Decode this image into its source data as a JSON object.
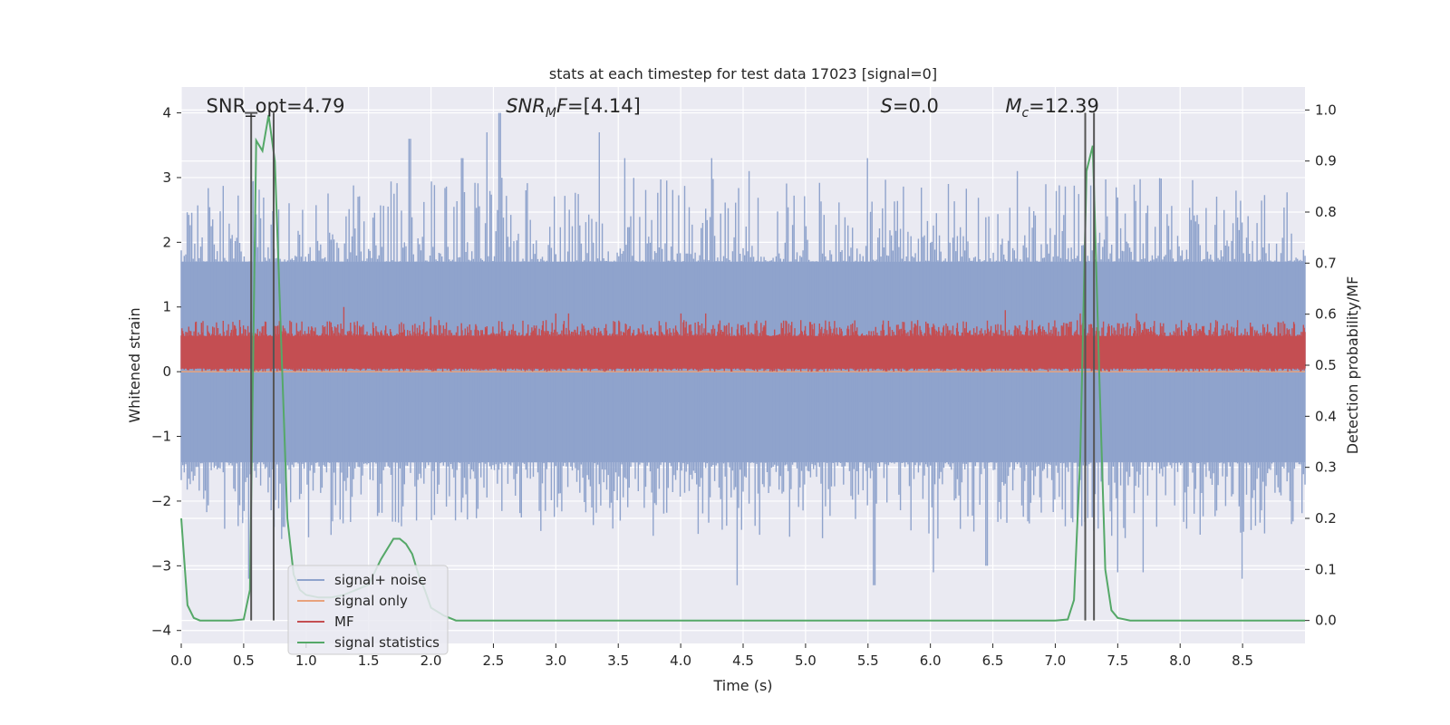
{
  "chart_data": {
    "type": "line",
    "title": "stats at each timestep for test data 17023 [signal=0]",
    "xlabel": "Time (s)",
    "ylabel": "Whitened strain",
    "ylabel_right": "Detection probability/MF",
    "xlim": [
      0.0,
      9.0
    ],
    "ylim": [
      -4.2,
      4.4
    ],
    "ylim_right": [
      -0.045,
      1.045
    ],
    "x_ticks": [
      0.0,
      0.5,
      1.0,
      1.5,
      2.0,
      2.5,
      3.0,
      3.5,
      4.0,
      4.5,
      5.0,
      5.5,
      6.0,
      6.5,
      7.0,
      7.5,
      8.0,
      8.5
    ],
    "x_tick_labels": [
      "0.0",
      "0.5",
      "1.0",
      "1.5",
      "2.0",
      "2.5",
      "3.0",
      "3.5",
      "4.0",
      "4.5",
      "5.0",
      "5.5",
      "6.0",
      "6.5",
      "7.0",
      "7.5",
      "8.0",
      "8.5"
    ],
    "y_ticks": [
      -4,
      -3,
      -2,
      -1,
      0,
      1,
      2,
      3,
      4
    ],
    "y_tick_labels": [
      "−4",
      "−3",
      "−2",
      "−1",
      "0",
      "1",
      "2",
      "3",
      "4"
    ],
    "y_ticks_right": [
      0.0,
      0.1,
      0.2,
      0.3,
      0.4,
      0.5,
      0.6,
      0.7,
      0.8,
      0.9,
      1.0
    ],
    "y_tick_labels_right": [
      "0.0",
      "0.1",
      "0.2",
      "0.3",
      "0.4",
      "0.5",
      "0.6",
      "0.7",
      "0.8",
      "0.9",
      "1.0"
    ],
    "grid": true,
    "annotations": [
      {
        "id": "snr-opt",
        "text": "SNR_opt=4.79",
        "x": 0.2
      },
      {
        "id": "snr-mf",
        "text": "SNR",
        "sub": "M",
        "tail": "F=[4.14]",
        "italic": true,
        "x": 2.6
      },
      {
        "id": "s-value",
        "text": "S",
        "tail": "=0.0",
        "italic": true,
        "x": 5.6
      },
      {
        "id": "mc-value",
        "text": "M",
        "sub": "c",
        "tail": "=12.39",
        "italic": true,
        "x": 6.6
      }
    ],
    "vertical_lines": [
      0.56,
      0.74,
      7.24,
      7.31
    ],
    "legend": {
      "position": "lower-left",
      "entries": [
        {
          "label": "signal+ noise",
          "color": "#8fa3cc"
        },
        {
          "label": "signal only",
          "color": "#e8a27c"
        },
        {
          "label": "MF",
          "color": "#c44e52"
        },
        {
          "label": "signal statistics",
          "color": "#55a868"
        }
      ]
    },
    "series": [
      {
        "name": "signal+ noise",
        "axis": "left",
        "kind": "noise-band",
        "color": "#8fa3cc",
        "core_range": [
          -1.4,
          1.7
        ],
        "typical_peak_range": [
          -2.6,
          3.0
        ],
        "extremes": [
          {
            "x": 0.54,
            "y": -3.2
          },
          {
            "x": 0.74,
            "y": -2.4
          },
          {
            "x": 1.83,
            "y": 3.6
          },
          {
            "x": 2.0,
            "y": 2.9
          },
          {
            "x": 2.25,
            "y": 3.3
          },
          {
            "x": 2.45,
            "y": 3.7
          },
          {
            "x": 2.55,
            "y": 4.0
          },
          {
            "x": 3.35,
            "y": 3.7
          },
          {
            "x": 3.55,
            "y": 3.3
          },
          {
            "x": 4.25,
            "y": 3.3
          },
          {
            "x": 4.45,
            "y": -3.3
          },
          {
            "x": 4.55,
            "y": 3.1
          },
          {
            "x": 5.5,
            "y": 3.3
          },
          {
            "x": 5.55,
            "y": -3.3
          },
          {
            "x": 6.02,
            "y": -3.1
          },
          {
            "x": 6.45,
            "y": -3.0
          },
          {
            "x": 6.7,
            "y": 3.1
          },
          {
            "x": 7.5,
            "y": -3.1
          },
          {
            "x": 7.7,
            "y": -3.1
          },
          {
            "x": 8.5,
            "y": -3.2
          },
          {
            "x": 8.68,
            "y": -2.5
          }
        ]
      },
      {
        "name": "signal only",
        "axis": "left",
        "kind": "flat-line",
        "color": "#e8a27c",
        "x": [
          0.0,
          9.0
        ],
        "y": [
          0.0,
          0.0
        ]
      },
      {
        "name": "MF",
        "axis": "left",
        "kind": "noise-band",
        "color": "#c44e52",
        "core_range": [
          0.05,
          0.55
        ],
        "typical_peak_range": [
          0.0,
          0.8
        ],
        "extremes": [
          {
            "x": 1.3,
            "y": 1.0
          },
          {
            "x": 2.0,
            "y": 0.85
          },
          {
            "x": 3.0,
            "y": 0.9
          },
          {
            "x": 3.1,
            "y": 0.9
          },
          {
            "x": 4.0,
            "y": 0.9
          },
          {
            "x": 4.2,
            "y": 0.9
          },
          {
            "x": 6.6,
            "y": 0.95
          },
          {
            "x": 7.2,
            "y": 0.9
          },
          {
            "x": 7.65,
            "y": 0.9
          }
        ]
      },
      {
        "name": "signal statistics",
        "axis": "right",
        "kind": "line",
        "color": "#55a868",
        "x": [
          0.0,
          0.05,
          0.1,
          0.15,
          0.2,
          0.3,
          0.4,
          0.5,
          0.55,
          0.6,
          0.65,
          0.7,
          0.75,
          0.8,
          0.85,
          0.9,
          0.95,
          1.0,
          1.1,
          1.2,
          1.3,
          1.4,
          1.5,
          1.6,
          1.65,
          1.7,
          1.75,
          1.8,
          1.85,
          1.9,
          1.95,
          2.0,
          2.1,
          2.2,
          3.0,
          4.0,
          5.0,
          6.0,
          6.5,
          7.0,
          7.1,
          7.15,
          7.2,
          7.25,
          7.3,
          7.35,
          7.4,
          7.45,
          7.5,
          7.6,
          8.0,
          8.5,
          9.0
        ],
        "y": [
          0.2,
          0.03,
          0.005,
          0.0,
          0.0,
          0.0,
          0.0,
          0.002,
          0.06,
          0.94,
          0.92,
          0.99,
          0.9,
          0.55,
          0.2,
          0.09,
          0.06,
          0.05,
          0.045,
          0.045,
          0.05,
          0.06,
          0.07,
          0.12,
          0.14,
          0.16,
          0.16,
          0.15,
          0.13,
          0.09,
          0.06,
          0.025,
          0.01,
          0.0,
          0.0,
          0.0,
          0.0,
          0.0,
          0.0,
          0.0,
          0.002,
          0.04,
          0.32,
          0.88,
          0.93,
          0.5,
          0.1,
          0.02,
          0.005,
          0.0,
          0.0,
          0.0,
          0.0
        ]
      }
    ]
  }
}
